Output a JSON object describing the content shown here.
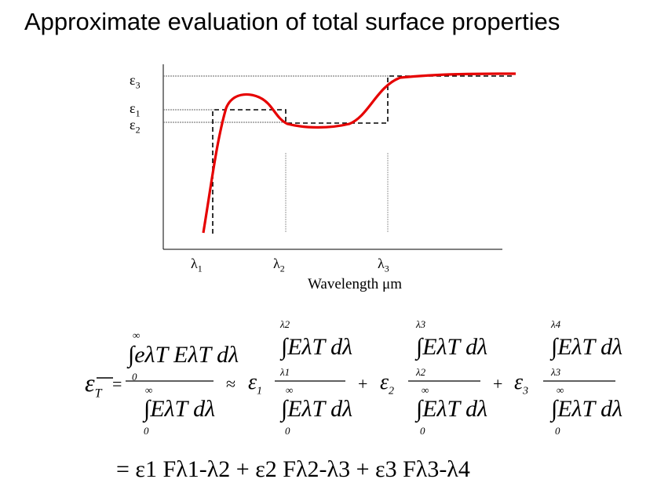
{
  "slide": {
    "title": "Approximate evaluation of total surface properties"
  },
  "graph": {
    "y_labels": [
      "ε",
      "ε",
      "ε"
    ],
    "y_subs": [
      "3",
      "1",
      "2"
    ],
    "x_labels": [
      "λ",
      "λ",
      "λ"
    ],
    "x_subs": [
      "1",
      "2",
      "3"
    ],
    "axis_title": "Wavelength  μm"
  },
  "equation": {
    "lhs": "ε",
    "lhs_sub": "T",
    "eq": "=",
    "approx": "≈",
    "plus": "+",
    "integrand_full": "∫e",
    "num0": "∫eλT EλT dλ",
    "den": "∫EλT dλ",
    "coef1": "ε",
    "coef1_sub": "1",
    "coef2": "ε",
    "coef2_sub": "2",
    "coef3": "ε",
    "coef3_sub": "3",
    "zero": "0",
    "inf": "∞",
    "l1": "λ1",
    "l2": "λ2",
    "l3": "λ3",
    "l4": "λ4",
    "last_line": "= ε1 Fλ1-λ2 + ε2 Fλ2-λ3 + ε3 Fλ3-λ4"
  }
}
